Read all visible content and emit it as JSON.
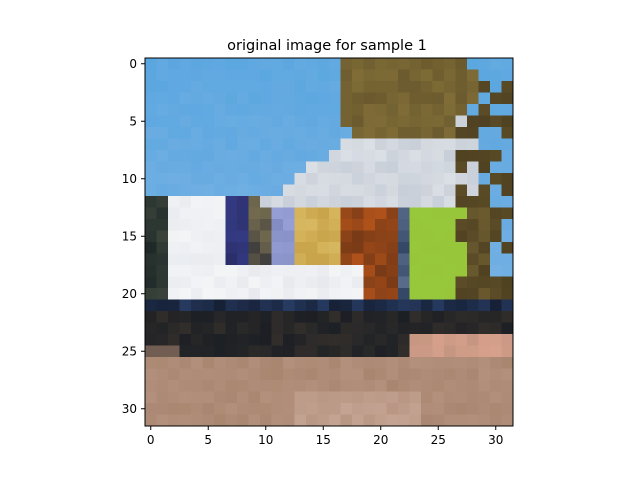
{
  "figure": {
    "title": "original image for sample 1"
  },
  "chart_data": {
    "type": "heatmap",
    "title": "original image for sample 1",
    "xlabel": "",
    "ylabel": "",
    "xlim": [
      -0.5,
      31.5
    ],
    "ylim": [
      31.5,
      -0.5
    ],
    "xticks": [
      0,
      5,
      10,
      15,
      20,
      25,
      30
    ],
    "yticks": [
      0,
      5,
      10,
      15,
      20,
      25,
      30
    ],
    "xtick_labels": [
      "0",
      "5",
      "10",
      "15",
      "20",
      "25",
      "30"
    ],
    "ytick_labels": [
      "0",
      "5",
      "10",
      "15",
      "20",
      "25",
      "30"
    ],
    "grid": false,
    "image_shape": [
      32,
      32,
      3
    ],
    "image_description_colors": {
      "sky": "#5aa6e0",
      "tree": "#6b5a2e",
      "roof": "#c9cfd8",
      "body_white": "#f4f5f7",
      "window_yellow": "#d8b860",
      "window_orange": "#b0521a",
      "window_green": "#98c63a",
      "dark_undercarriage": "#1c1f24",
      "ground": "#a98670"
    }
  }
}
